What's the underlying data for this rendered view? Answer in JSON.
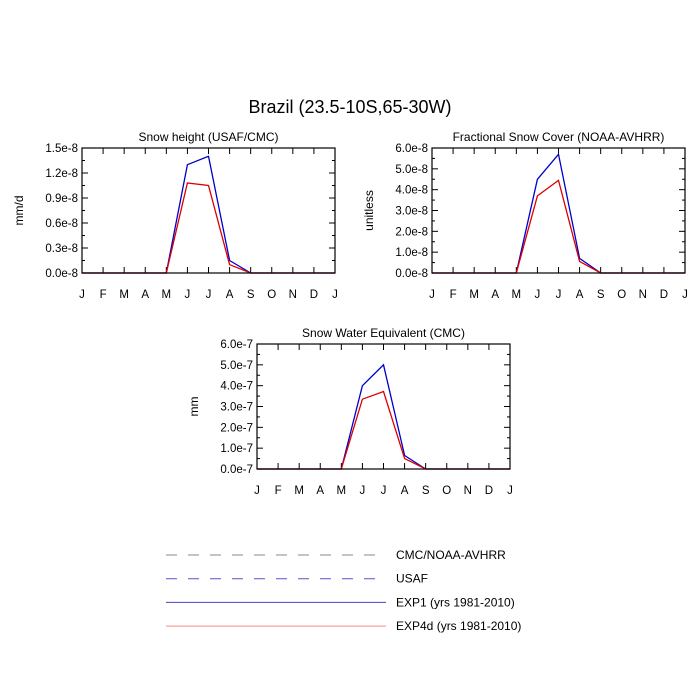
{
  "main_title": "Brazil (23.5-10S,65-30W)",
  "colors": {
    "exp1": "#0000cc",
    "exp4d": "#dd0000",
    "obs": "#888888",
    "usaf": "#5555cc",
    "exp1_legend": "#4444bb",
    "exp4d_legend": "#ff8888"
  },
  "chart_data": [
    {
      "type": "line",
      "title": "Snow height (USAF/CMC)",
      "ylabel": "mm/d",
      "categories": [
        "J",
        "F",
        "M",
        "A",
        "M",
        "J",
        "J",
        "A",
        "S",
        "O",
        "N",
        "D",
        "J"
      ],
      "ylim": [
        0,
        1.5e-08
      ],
      "yticks": [
        "0.0e-8",
        "0.3e-8",
        "0.6e-8",
        "0.9e-8",
        "1.2e-8",
        "1.5e-8"
      ],
      "series": [
        {
          "name": "EXP1 (yrs 1981-2010)",
          "color_key": "exp1",
          "values": [
            0,
            0,
            0,
            0,
            0,
            1.3e-08,
            1.4e-08,
            1.5e-09,
            0,
            0,
            0,
            0,
            0
          ]
        },
        {
          "name": "EXP4d (yrs 1981-2010)",
          "color_key": "exp4d",
          "values": [
            0,
            0,
            0,
            0,
            0,
            1.08e-08,
            1.05e-08,
            1e-09,
            0,
            0,
            0,
            0,
            0
          ]
        }
      ]
    },
    {
      "type": "line",
      "title": "Fractional Snow Cover (NOAA-AVHRR)",
      "ylabel": "unitless",
      "categories": [
        "J",
        "F",
        "M",
        "A",
        "M",
        "J",
        "J",
        "A",
        "S",
        "O",
        "N",
        "D",
        "J"
      ],
      "ylim": [
        0,
        6e-08
      ],
      "yticks": [
        "0.0e-8",
        "1.0e-8",
        "2.0e-8",
        "3.0e-8",
        "4.0e-8",
        "5.0e-8",
        "6.0e-8"
      ],
      "series": [
        {
          "name": "EXP1 (yrs 1981-2010)",
          "color_key": "exp1",
          "values": [
            0,
            0,
            0,
            0,
            0,
            4.5e-08,
            5.7e-08,
            7e-09,
            0,
            0,
            0,
            0,
            0
          ]
        },
        {
          "name": "EXP4d (yrs 1981-2010)",
          "color_key": "exp4d",
          "values": [
            0,
            0,
            0,
            0,
            0,
            3.7e-08,
            4.45e-08,
            5.5e-09,
            0,
            0,
            0,
            0,
            0
          ]
        }
      ]
    },
    {
      "type": "line",
      "title": "Snow Water Equivalent (CMC)",
      "ylabel": "mm",
      "categories": [
        "J",
        "F",
        "M",
        "A",
        "M",
        "J",
        "J",
        "A",
        "S",
        "O",
        "N",
        "D",
        "J"
      ],
      "ylim": [
        0,
        6e-07
      ],
      "yticks": [
        "0.0e-7",
        "1.0e-7",
        "2.0e-7",
        "3.0e-7",
        "4.0e-7",
        "5.0e-7",
        "6.0e-7"
      ],
      "series": [
        {
          "name": "EXP1 (yrs 1981-2010)",
          "color_key": "exp1",
          "values": [
            0,
            0,
            0,
            0,
            0,
            4e-07,
            5e-07,
            6.5e-08,
            0,
            0,
            0,
            0,
            0
          ]
        },
        {
          "name": "EXP4d (yrs 1981-2010)",
          "color_key": "exp4d",
          "values": [
            0,
            0,
            0,
            0,
            0,
            3.35e-07,
            3.72e-07,
            5e-08,
            0,
            0,
            0,
            0,
            0
          ]
        }
      ]
    }
  ],
  "legend": [
    {
      "label": "CMC/NOAA-AVHRR",
      "style": "dashed",
      "color_key": "obs"
    },
    {
      "label": "USAF",
      "style": "dashed",
      "color_key": "usaf"
    },
    {
      "label": "EXP1 (yrs 1981-2010)",
      "style": "solid",
      "color_key": "exp1_legend"
    },
    {
      "label": "EXP4d (yrs 1981-2010)",
      "style": "solid",
      "color_key": "exp4d_legend"
    }
  ]
}
